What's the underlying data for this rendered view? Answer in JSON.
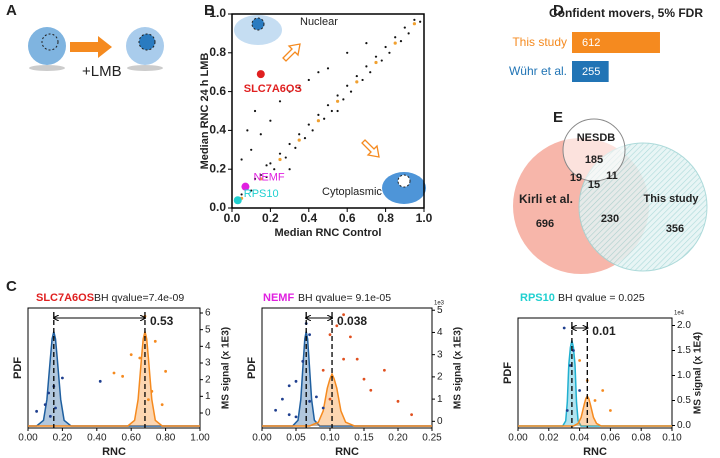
{
  "panel_labels": [
    "A",
    "B",
    "C",
    "D",
    "E"
  ],
  "panel_a": {
    "treatment": "+LMB"
  },
  "venn": {
    "sets": [
      "NESDB",
      "Kirli et al.",
      "This study"
    ],
    "counts": [
      185,
      19,
      15,
      11,
      696,
      230,
      356
    ]
  },
  "chart_data": [
    {
      "type": "scatter",
      "xlabel": "Median RNC Control",
      "ylabel": "Median RNC 24 h LMB",
      "xlim": [
        0,
        1
      ],
      "ylim": [
        0,
        1
      ],
      "xticks": [
        {
          "value": 0,
          "label": "0.0"
        },
        0.2,
        0.4,
        0.6,
        0.8,
        {
          "value": 1,
          "label": "1.0"
        }
      ],
      "yticks": [
        {
          "value": 0,
          "label": "0.0"
        },
        0.2,
        0.4,
        0.6,
        0.8,
        {
          "value": 1,
          "label": "1.0"
        }
      ],
      "region_labels": [
        "Nuclear",
        "Cytoplasmic"
      ],
      "series": [
        {
          "color": "#111111",
          "x": [
            0.02,
            0.05,
            0.08,
            0.1,
            0.12,
            0.15,
            0.18,
            0.2,
            0.22,
            0.25,
            0.28,
            0.3,
            0.33,
            0.35,
            0.38,
            0.4,
            0.42,
            0.45,
            0.48,
            0.5,
            0.52,
            0.55,
            0.58,
            0.6,
            0.62,
            0.65,
            0.68,
            0.7,
            0.72,
            0.75,
            0.78,
            0.8,
            0.82,
            0.85,
            0.88,
            0.9,
            0.92,
            0.95,
            0.98,
            0.05,
            0.1,
            0.08,
            0.15,
            0.2,
            0.12,
            0.25,
            0.3,
            0.18,
            0.35,
            0.4,
            0.45,
            0.5,
            0.6,
            0.7,
            0.3,
            0.55
          ],
          "values": [
            0.03,
            0.07,
            0.1,
            0.09,
            0.15,
            0.17,
            0.16,
            0.23,
            0.2,
            0.28,
            0.26,
            0.33,
            0.31,
            0.38,
            0.36,
            0.43,
            0.4,
            0.48,
            0.46,
            0.53,
            0.5,
            0.58,
            0.56,
            0.63,
            0.6,
            0.68,
            0.66,
            0.73,
            0.7,
            0.78,
            0.76,
            0.83,
            0.8,
            0.88,
            0.86,
            0.93,
            0.9,
            0.97,
            0.96,
            0.25,
            0.3,
            0.4,
            0.38,
            0.45,
            0.5,
            0.55,
            0.6,
            0.22,
            0.62,
            0.66,
            0.7,
            0.72,
            0.8,
            0.85,
            0.2,
            0.5
          ]
        },
        {
          "color": "#f0a030",
          "x": [
            0.05,
            0.15,
            0.25,
            0.35,
            0.45,
            0.55,
            0.65,
            0.75,
            0.85,
            0.95
          ],
          "values": [
            0.05,
            0.15,
            0.25,
            0.35,
            0.45,
            0.55,
            0.65,
            0.75,
            0.85,
            0.95
          ]
        }
      ],
      "annotations": [
        {
          "text": "SLC7A6OS",
          "x": 0.15,
          "y": 0.69,
          "color": "#e02020"
        },
        {
          "text": "NEMF",
          "x": 0.07,
          "y": 0.11,
          "color": "#e020e0"
        },
        {
          "text": "RPS10",
          "x": 0.03,
          "y": 0.04,
          "color": "#20d0d0"
        }
      ]
    },
    {
      "type": "bar",
      "title": "Confident movers, 5% FDR",
      "categories": [
        "This study",
        "Wühr et al."
      ],
      "values": [
        612,
        255
      ],
      "colors": [
        "#f58a1f",
        "#2174b5"
      ],
      "xlim": [
        0,
        640
      ]
    },
    {
      "type": "density",
      "gene": "SLC7A6OS",
      "gene_color": "#e02020",
      "stat": "BH qvalue=7.4e-09",
      "difference": 0.53,
      "xlabel": "RNC",
      "ylabel": "PDF",
      "y2label": "MS signal (x 1E3)",
      "xlim": [
        0,
        1
      ],
      "ylim": [
        0,
        1.1
      ],
      "y2lim": [
        -0.9,
        6.3
      ],
      "xticks": [
        {
          "value": 0,
          "label": "0.00"
        },
        {
          "value": 0.2,
          "label": "0.20"
        },
        {
          "value": 0.4,
          "label": "0.40"
        },
        {
          "value": 0.6,
          "label": "0.60"
        },
        {
          "value": 0.8,
          "label": "0.80"
        },
        {
          "value": 1,
          "label": "1.00"
        }
      ],
      "y2ticks": [
        0,
        1,
        2,
        3,
        4,
        5,
        6
      ],
      "markers": [
        0.15,
        0.68
      ],
      "series": [
        {
          "color": "#1f5f9f",
          "style": "line",
          "x": [
            0,
            0.05,
            0.09,
            0.11,
            0.13,
            0.14,
            0.15,
            0.16,
            0.17,
            0.19,
            0.21,
            0.25,
            1
          ],
          "values": [
            0,
            0,
            0.06,
            0.28,
            0.72,
            0.92,
            1,
            0.92,
            0.72,
            0.28,
            0.06,
            0,
            0
          ]
        },
        {
          "color": "#f58a1f",
          "style": "line",
          "x": [
            0,
            0.58,
            0.62,
            0.64,
            0.66,
            0.67,
            0.68,
            0.69,
            0.7,
            0.72,
            0.74,
            0.78,
            1
          ],
          "values": [
            0,
            0,
            0.06,
            0.28,
            0.72,
            0.92,
            1,
            0.92,
            0.72,
            0.28,
            0.06,
            0,
            0
          ]
        },
        {
          "color": "#1f3f8f",
          "style": "points",
          "axis": "y2",
          "x": [
            0.1,
            0.12,
            0.05,
            0.15,
            0.2,
            0.13,
            0.42,
            0.16
          ],
          "values": [
            0.5,
            1.2,
            0.1,
            1.6,
            2.1,
            -0.2,
            1.9,
            0.3
          ]
        },
        {
          "color": "#f58a1f",
          "style": "points",
          "axis": "y2",
          "x": [
            0.6,
            0.68,
            0.72,
            0.55,
            0.8,
            0.7,
            0.74,
            0.65,
            0.5,
            0.78
          ],
          "values": [
            3.5,
            5.8,
            1.3,
            2.2,
            2.5,
            0.8,
            4.3,
            3.3,
            2.4,
            0.5
          ]
        }
      ]
    },
    {
      "type": "density",
      "gene": "NEMF",
      "gene_color": "#e020e0",
      "stat": "BH qvalue= 9.1e-05",
      "difference": 0.038,
      "xlabel": "RNC",
      "ylabel": "PDF",
      "y2label": "MS signal (x 1E3)",
      "y2_offset": "1e3",
      "xlim": [
        0,
        0.25
      ],
      "ylim": [
        0,
        1.1
      ],
      "y2lim": [
        -0.3,
        5.1
      ],
      "xticks": [
        {
          "value": 0,
          "label": "0.00"
        },
        0.05,
        {
          "value": 0.1,
          "label": "0.10"
        },
        0.15,
        {
          "value": 0.2,
          "label": "0.20"
        },
        0.25
      ],
      "y2ticks": [
        0,
        1,
        2,
        3,
        4,
        5
      ],
      "markers": [
        0.065,
        0.103
      ],
      "series": [
        {
          "color": "#1f5f9f",
          "style": "line",
          "x": [
            0,
            0.045,
            0.053,
            0.057,
            0.061,
            0.063,
            0.065,
            0.067,
            0.069,
            0.073,
            0.077,
            0.085,
            0.25
          ],
          "values": [
            0,
            0,
            0.06,
            0.28,
            0.72,
            0.92,
            1,
            0.92,
            0.72,
            0.28,
            0.06,
            0,
            0
          ]
        },
        {
          "color": "#f58a1f",
          "style": "line",
          "x": [
            0,
            0.07,
            0.083,
            0.09,
            0.096,
            0.1,
            0.103,
            0.106,
            0.11,
            0.116,
            0.123,
            0.136,
            0.25
          ],
          "values": [
            0,
            0,
            0.04,
            0.16,
            0.4,
            0.5,
            0.55,
            0.5,
            0.4,
            0.16,
            0.04,
            0,
            0
          ]
        },
        {
          "color": "#1f3f8f",
          "style": "points",
          "axis": "y2",
          "x": [
            0.02,
            0.03,
            0.04,
            0.05,
            0.06,
            0.065,
            0.07,
            0.08,
            0.09,
            0.05,
            0.04,
            0.07
          ],
          "values": [
            0.5,
            1.0,
            0.3,
            1.8,
            2.7,
            4.4,
            3.9,
            1.1,
            0.6,
            0.2,
            1.6,
            0.9
          ]
        },
        {
          "color": "#e0501f",
          "style": "points",
          "axis": "y2",
          "x": [
            0.09,
            0.1,
            0.11,
            0.12,
            0.13,
            0.14,
            0.15,
            0.16,
            0.18,
            0.2,
            0.22,
            0.12,
            0.1
          ],
          "values": [
            2.3,
            3.9,
            4.3,
            4.8,
            3.8,
            2.8,
            1.9,
            1.4,
            2.3,
            0.9,
            0.3,
            2.8,
            1.0
          ]
        }
      ]
    },
    {
      "type": "density",
      "gene": "RPS10",
      "gene_color": "#20d0d0",
      "stat": "BH qvalue = 0.025",
      "difference": 0.01,
      "xlabel": "RNC",
      "ylabel": "PDF",
      "y2label": "MS signal (x 1E4)",
      "y2_offset": "1e4",
      "xlim": [
        0,
        0.1
      ],
      "ylim": [
        0,
        1.1
      ],
      "y2lim": [
        -0.05,
        2.15
      ],
      "xticks": [
        {
          "value": 0,
          "label": "0.00"
        },
        0.02,
        0.04,
        0.06,
        0.08,
        {
          "value": 0.1,
          "label": "0.10"
        }
      ],
      "y2ticks": [
        {
          "value": 0,
          "label": "0.0"
        },
        0.5,
        {
          "value": 1,
          "label": "1.0"
        },
        1.5,
        {
          "value": 2,
          "label": "2.0"
        }
      ],
      "markers": [
        0.035,
        0.045
      ],
      "series": [
        {
          "color": "#20b0d0",
          "style": "line",
          "x": [
            0,
            0.029,
            0.031,
            0.032,
            0.033,
            0.034,
            0.035,
            0.036,
            0.037,
            0.038,
            0.039,
            0.041,
            0.1
          ],
          "values": [
            0,
            0,
            0.06,
            0.28,
            0.72,
            0.92,
            1,
            0.92,
            0.72,
            0.28,
            0.06,
            0,
            0
          ]
        },
        {
          "color": "#f58a1f",
          "style": "line",
          "x": [
            0,
            0.036,
            0.039,
            0.041,
            0.043,
            0.044,
            0.045,
            0.046,
            0.047,
            0.049,
            0.051,
            0.054,
            0.1
          ],
          "values": [
            0,
            0,
            0.03,
            0.1,
            0.25,
            0.32,
            0.35,
            0.32,
            0.25,
            0.1,
            0.03,
            0,
            0
          ]
        },
        {
          "color": "#1f3f8f",
          "style": "points",
          "axis": "y2",
          "x": [
            0.03,
            0.034,
            0.036,
            0.04,
            0.032
          ],
          "values": [
            1.95,
            1.2,
            1.5,
            0.7,
            0.3
          ]
        },
        {
          "color": "#f58a1f",
          "style": "points",
          "axis": "y2",
          "x": [
            0.04,
            0.045,
            0.05,
            0.06,
            0.055
          ],
          "values": [
            1.3,
            0.9,
            0.5,
            0.3,
            0.7
          ]
        }
      ]
    }
  ]
}
